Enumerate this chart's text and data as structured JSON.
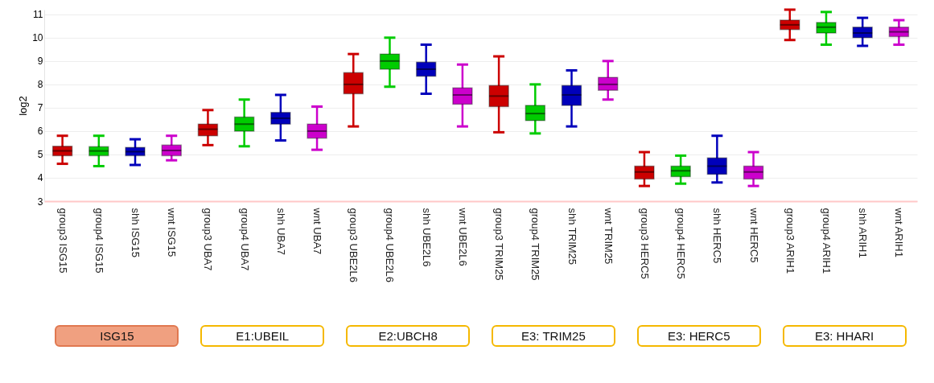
{
  "chart_data": {
    "type": "box",
    "ylabel": "log2",
    "categories": [
      "group3 ISG15",
      "group4 ISG15",
      "shh ISG15",
      "wnt ISG15",
      "group3 UBA7",
      "group4 UBA7",
      "shh UBA7",
      "wnt UBA7",
      "group3 UBE2L6",
      "group4 UBE2L6",
      "shh UBE2L6",
      "wnt UBE2L6",
      "group3 TRIM25",
      "group4 TRIM25",
      "shh TRIM25",
      "wnt TRIM25",
      "group3 HERC5",
      "group4 HERC5",
      "shh HERC5",
      "wnt HERC5",
      "group3 ARIH1",
      "group4 ARIH1",
      "shh ARIH1",
      "wnt ARIH1"
    ],
    "colors": [
      "#cc0000",
      "#00cc00",
      "#0000bb",
      "#cc00cc",
      "#cc0000",
      "#00cc00",
      "#0000bb",
      "#cc00cc",
      "#cc0000",
      "#00cc00",
      "#0000bb",
      "#cc00cc",
      "#cc0000",
      "#00cc00",
      "#0000bb",
      "#cc00cc",
      "#cc0000",
      "#00cc00",
      "#0000bb",
      "#cc00cc",
      "#cc0000",
      "#00cc00",
      "#0000bb",
      "#cc00cc"
    ],
    "boxes": [
      {
        "low": 4.6,
        "q1": 4.95,
        "median": 5.15,
        "q3": 5.35,
        "high": 5.8
      },
      {
        "low": 4.5,
        "q1": 4.95,
        "median": 5.15,
        "q3": 5.33,
        "high": 5.8
      },
      {
        "low": 4.55,
        "q1": 4.95,
        "median": 5.12,
        "q3": 5.3,
        "high": 5.65
      },
      {
        "low": 4.75,
        "q1": 4.95,
        "median": 5.17,
        "q3": 5.4,
        "high": 5.8
      },
      {
        "low": 5.4,
        "q1": 5.8,
        "median": 6.08,
        "q3": 6.3,
        "high": 6.9
      },
      {
        "low": 5.35,
        "q1": 6.0,
        "median": 6.3,
        "q3": 6.6,
        "high": 7.35
      },
      {
        "low": 5.6,
        "q1": 6.3,
        "median": 6.55,
        "q3": 6.8,
        "high": 7.55
      },
      {
        "low": 5.2,
        "q1": 5.7,
        "median": 6.0,
        "q3": 6.3,
        "high": 7.05
      },
      {
        "low": 6.2,
        "q1": 7.6,
        "median": 8.0,
        "q3": 8.5,
        "high": 9.3
      },
      {
        "low": 7.9,
        "q1": 8.65,
        "median": 9.0,
        "q3": 9.3,
        "high": 10.0
      },
      {
        "low": 7.6,
        "q1": 8.35,
        "median": 8.65,
        "q3": 8.95,
        "high": 9.7
      },
      {
        "low": 6.2,
        "q1": 7.15,
        "median": 7.55,
        "q3": 7.85,
        "high": 8.85
      },
      {
        "low": 5.95,
        "q1": 7.05,
        "median": 7.5,
        "q3": 7.95,
        "high": 9.2
      },
      {
        "low": 5.9,
        "q1": 6.45,
        "median": 6.75,
        "q3": 7.1,
        "high": 8.0
      },
      {
        "low": 6.2,
        "q1": 7.1,
        "median": 7.55,
        "q3": 7.95,
        "high": 8.6
      },
      {
        "low": 7.35,
        "q1": 7.75,
        "median": 8.0,
        "q3": 8.3,
        "high": 9.0
      },
      {
        "low": 3.65,
        "q1": 3.95,
        "median": 4.25,
        "q3": 4.5,
        "high": 5.1
      },
      {
        "low": 3.75,
        "q1": 4.05,
        "median": 4.3,
        "q3": 4.5,
        "high": 4.95
      },
      {
        "low": 3.8,
        "q1": 4.15,
        "median": 4.5,
        "q3": 4.85,
        "high": 5.8
      },
      {
        "low": 3.65,
        "q1": 3.95,
        "median": 4.25,
        "q3": 4.5,
        "high": 5.1
      },
      {
        "low": 9.9,
        "q1": 10.35,
        "median": 10.55,
        "q3": 10.75,
        "high": 11.2
      },
      {
        "low": 9.7,
        "q1": 10.2,
        "median": 10.45,
        "q3": 10.65,
        "high": 11.1
      },
      {
        "low": 9.65,
        "q1": 10.0,
        "median": 10.2,
        "q3": 10.45,
        "high": 10.85
      },
      {
        "low": 9.7,
        "q1": 10.05,
        "median": 10.25,
        "q3": 10.45,
        "high": 10.75
      }
    ],
    "ylim": [
      3,
      11.2
    ],
    "yticks": [
      3,
      4,
      5,
      6,
      7,
      8,
      9,
      10,
      11
    ],
    "grid": "y",
    "annotations": [
      "ISG15",
      "E1:UBEIL",
      "E2:UBCH8",
      "E3: TRIM25",
      "E3: HERC5",
      "E3: HHARI"
    ]
  }
}
